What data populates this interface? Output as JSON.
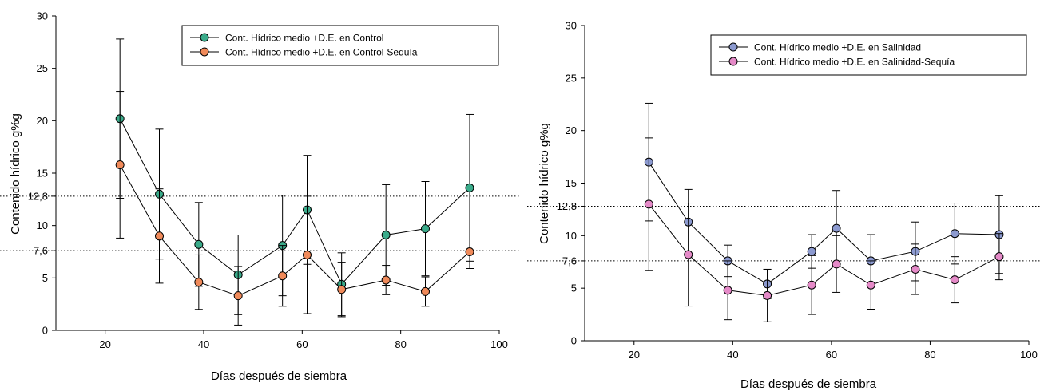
{
  "charts": [
    {
      "id": "left",
      "chart_data": {
        "type": "line",
        "xlabel": "Días después de siembra",
        "ylabel": "Contenido hídrico g%g",
        "xlim": [
          10,
          100
        ],
        "ylim": [
          0,
          30
        ],
        "xticks": [
          20,
          40,
          60,
          80,
          100
        ],
        "yticks": [
          0,
          5,
          7.6,
          10,
          12.8,
          15,
          20,
          25,
          30
        ],
        "ytick_labels": [
          "0",
          "5",
          "7,6",
          "10",
          "12,8",
          "15",
          "20",
          "25",
          "30"
        ],
        "reference_lines": [
          7.6,
          12.8
        ],
        "legend_position": "top-right",
        "series": [
          {
            "name": "Cont. Hídrico medio +D.E. en Control",
            "color": "#3aab8a",
            "x": [
              23,
              31,
              39,
              47,
              56,
              61,
              68,
              77,
              85,
              94
            ],
            "y": [
              20.2,
              13.0,
              8.2,
              5.3,
              8.1,
              11.5,
              4.4,
              9.1,
              9.7,
              13.6
            ],
            "err": [
              7.6,
              6.2,
              4.0,
              3.8,
              4.8,
              5.2,
              3.0,
              4.8,
              4.5,
              7.0
            ]
          },
          {
            "name": "Cont. Hídrico medio +D.E. en Control-Sequía",
            "color": "#f08a5a",
            "x": [
              23,
              31,
              39,
              47,
              56,
              61,
              68,
              77,
              85,
              94
            ],
            "y": [
              15.8,
              9.0,
              4.6,
              3.3,
              5.2,
              7.2,
              3.9,
              4.8,
              3.7,
              7.5
            ],
            "err": [
              7.0,
              4.5,
              2.6,
              2.8,
              2.9,
              5.6,
              2.6,
              1.4,
              1.4,
              1.6
            ]
          }
        ]
      }
    },
    {
      "id": "right",
      "chart_data": {
        "type": "line",
        "xlabel": "Días después de siembra",
        "ylabel": "Contenido hídrico g%g",
        "xlim": [
          10,
          100
        ],
        "ylim": [
          0,
          30
        ],
        "xticks": [
          20,
          40,
          60,
          80,
          100
        ],
        "yticks": [
          0,
          5,
          7.6,
          10,
          12.8,
          15,
          20,
          25,
          30
        ],
        "ytick_labels": [
          "0",
          "5",
          "7,6",
          "10",
          "12,8",
          "15",
          "20",
          "25",
          "30"
        ],
        "reference_lines": [
          7.6,
          12.8
        ],
        "legend_position": "top-right",
        "series": [
          {
            "name": "Cont. Hídrico medio +D.E. en Salinidad",
            "color": "#8c9ad0",
            "x": [
              23,
              31,
              39,
              47,
              56,
              61,
              68,
              77,
              85,
              94
            ],
            "y": [
              17.0,
              11.3,
              7.6,
              5.4,
              8.5,
              10.7,
              7.6,
              8.5,
              10.2,
              10.1
            ],
            "err": [
              5.6,
              3.1,
              1.5,
              1.4,
              1.6,
              3.6,
              2.5,
              2.8,
              2.9,
              3.7
            ]
          },
          {
            "name": "Cont. Hídrico medio +D.E. en Salinidad-Sequía",
            "color": "#e58ac8",
            "x": [
              23,
              31,
              39,
              47,
              56,
              61,
              68,
              77,
              85,
              94
            ],
            "y": [
              13.0,
              8.2,
              4.8,
              4.3,
              5.3,
              7.3,
              5.3,
              6.8,
              5.8,
              8.0
            ],
            "err": [
              6.3,
              4.9,
              2.8,
              2.5,
              2.8,
              2.7,
              2.3,
              2.4,
              2.2,
              2.2
            ]
          }
        ]
      }
    }
  ]
}
